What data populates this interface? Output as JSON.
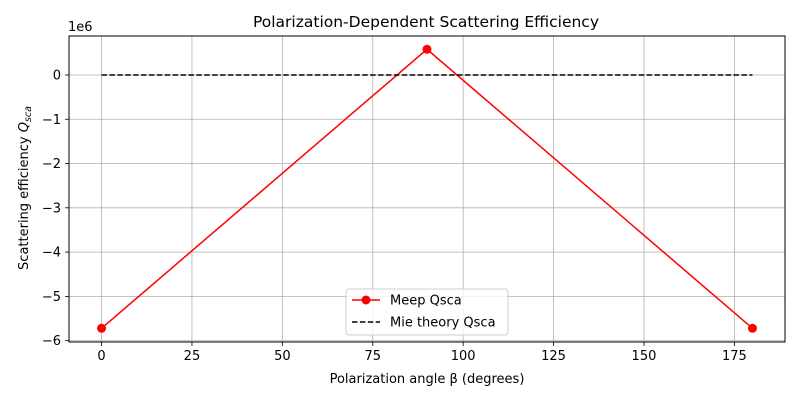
{
  "chart_data": {
    "type": "line",
    "title": "Polarization-Dependent Scattering Efficiency",
    "xlabel": "Polarization angle β (degrees)",
    "ylabel": "Scattering efficiency ",
    "ylabel_symbol": "Q",
    "ylabel_subscript": "sca",
    "y_offset_label": "1e6",
    "xlim": [
      -9,
      189
    ],
    "ylim": [
      -6.03,
      0.88
    ],
    "x_scale": "linear",
    "y_scale": "linear",
    "grid": true,
    "legend_position": "lower-center",
    "x_ticks": [
      0,
      25,
      50,
      75,
      100,
      125,
      150,
      175
    ],
    "x_tick_labels": [
      "0",
      "25",
      "50",
      "75",
      "100",
      "125",
      "150",
      "175"
    ],
    "y_ticks": [
      0,
      -1,
      -2,
      -3,
      -4,
      -5,
      -6
    ],
    "y_tick_labels": [
      "0",
      "−1",
      "−2",
      "−3",
      "−4",
      "−5",
      "−6"
    ],
    "series": [
      {
        "name": "Meep Qsca",
        "color": "#ff0000",
        "style": "solid",
        "marker": "circle",
        "x": [
          0,
          90,
          180
        ],
        "y": [
          -5.72,
          0.58,
          -5.72
        ]
      },
      {
        "name": "Mie theory Qsca",
        "color": "#000000",
        "style": "dashed",
        "marker": "none",
        "x": [
          0,
          180
        ],
        "y": [
          0,
          0
        ]
      }
    ]
  }
}
